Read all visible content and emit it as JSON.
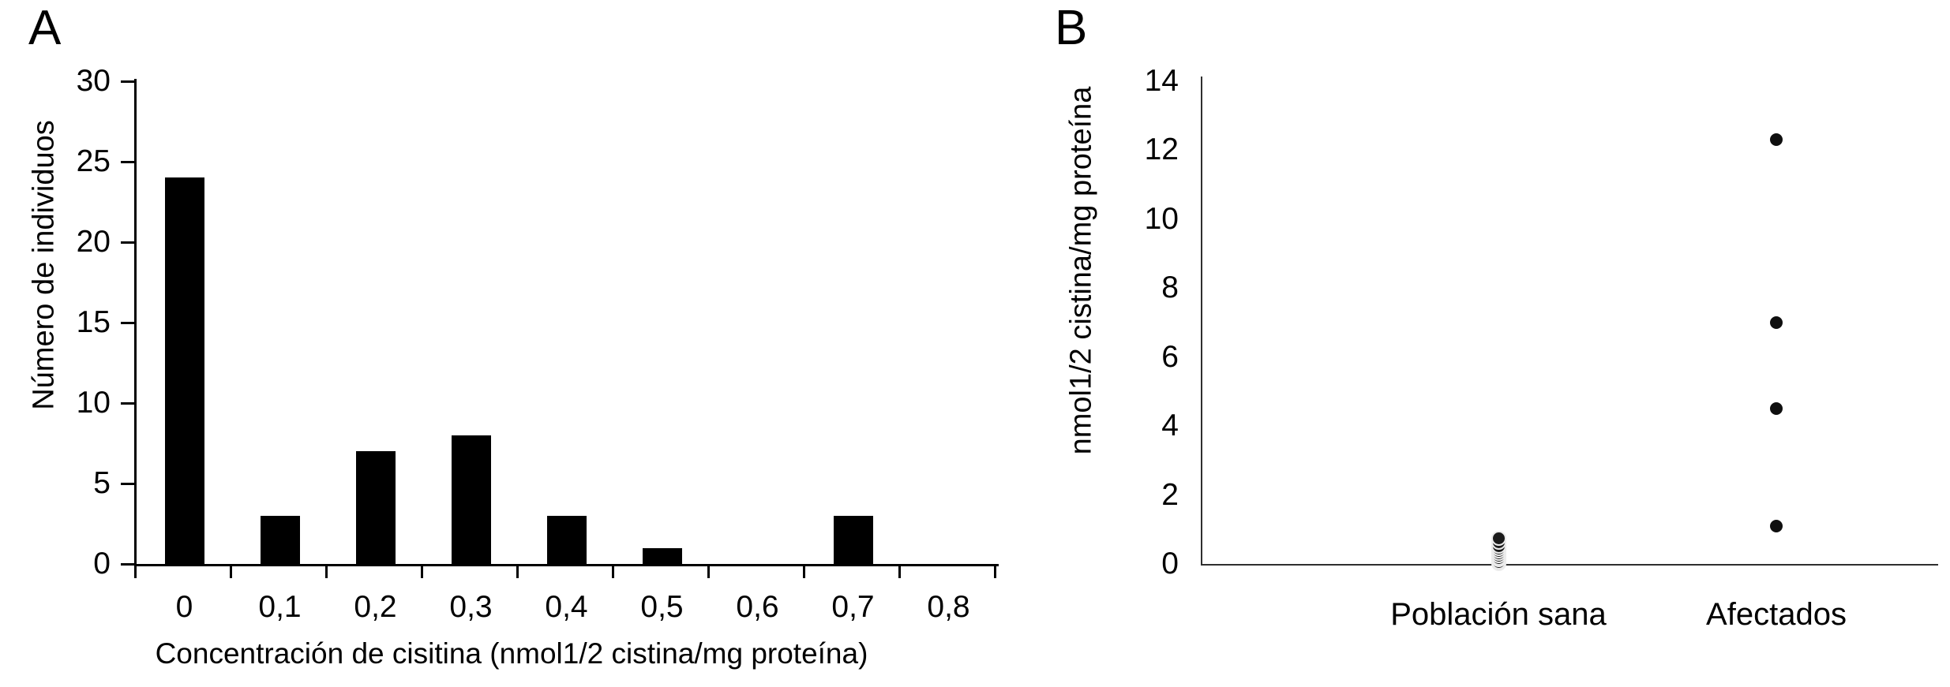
{
  "figure": {
    "background": "#ffffff",
    "ink_color": "#000000"
  },
  "panel_a": {
    "letter": "A",
    "ylabel": "Número de individuos",
    "xlabel": "Concentración de cisitina (nmol1/2 cistina/mg proteína)"
  },
  "panel_b": {
    "letter": "B",
    "ylabel": "nmol1/2 cistina/mg proteína",
    "group_labels": [
      "Población sana",
      "Afectados"
    ]
  },
  "chart_data": [
    {
      "type": "bar",
      "panel": "A",
      "title": "",
      "xlabel": "Concentración de cisitina (nmol1/2 cistina/mg proteína)",
      "ylabel": "Número de individuos",
      "categories": [
        "0",
        "0,1",
        "0,2",
        "0,3",
        "0,4",
        "0,5",
        "0,6",
        "0,7",
        "0,8"
      ],
      "values": [
        24,
        3,
        7,
        8,
        3,
        1,
        0,
        3,
        0
      ],
      "ylim": [
        0,
        30
      ],
      "ytick_step": 5,
      "yticks": [
        0,
        5,
        10,
        15,
        20,
        25,
        30
      ],
      "bar_color": "#000000",
      "grid": false,
      "legend": false
    },
    {
      "type": "scatter",
      "panel": "B",
      "title": "",
      "ylabel": "nmol1/2 cistina/mg proteína",
      "categories": [
        "Población sana",
        "Afectados"
      ],
      "series": [
        {
          "name": "Población sana",
          "values": [
            0.02,
            0.06,
            0.12,
            0.18,
            0.24,
            0.3,
            0.37,
            0.44,
            0.52,
            0.62,
            0.75
          ]
        },
        {
          "name": "Afectados",
          "values": [
            1.1,
            4.5,
            7,
            12.3
          ]
        }
      ],
      "ylim": [
        0,
        14
      ],
      "ytick_step": 2,
      "yticks": [
        0,
        2,
        4,
        6,
        8,
        10,
        12,
        14
      ],
      "point_color": "#111111",
      "grid": false,
      "legend": false
    }
  ]
}
